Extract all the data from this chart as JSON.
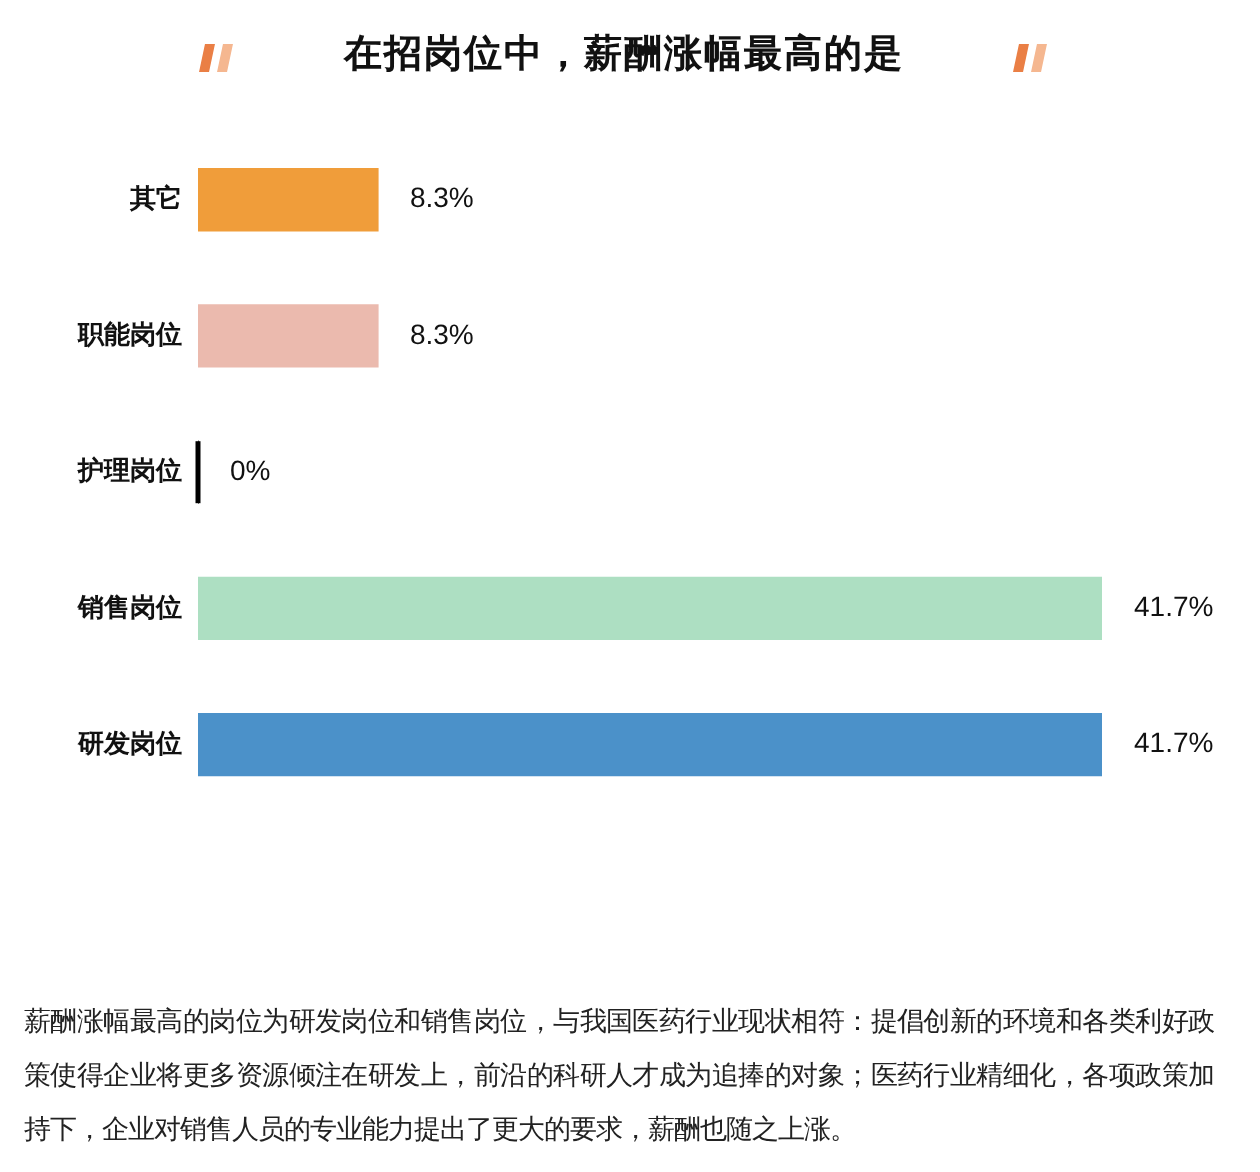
{
  "chart_data": {
    "type": "bar",
    "orientation": "horizontal",
    "title": "在招岗位中，薪酬涨幅最高的是",
    "categories": [
      "其它",
      "职能岗位",
      "护理岗位",
      "销售岗位",
      "研发岗位"
    ],
    "values": [
      8.3,
      8.3,
      0,
      41.7,
      41.7
    ],
    "colors": [
      "#f09d3a",
      "#ebbaae",
      "#000000",
      "#addfc2",
      "#4b91c9"
    ],
    "value_labels": [
      "8.3%",
      "8.3%",
      "0%",
      "41.7%",
      "41.7%"
    ],
    "annotations": [
      "薪酬涨幅最高的岗位为研发岗位和销售岗位，与我国医药行业现状相符：提倡创新的环境和各类利好政策使得企业将更多资源倾注在研发上，前沿的科研人才成为追捧的对象；医药行业精细化，各项政策加持下，企业对销售人员的专业能力提出了更大的要求，薪酬也随之上涨。"
    ]
  }
}
